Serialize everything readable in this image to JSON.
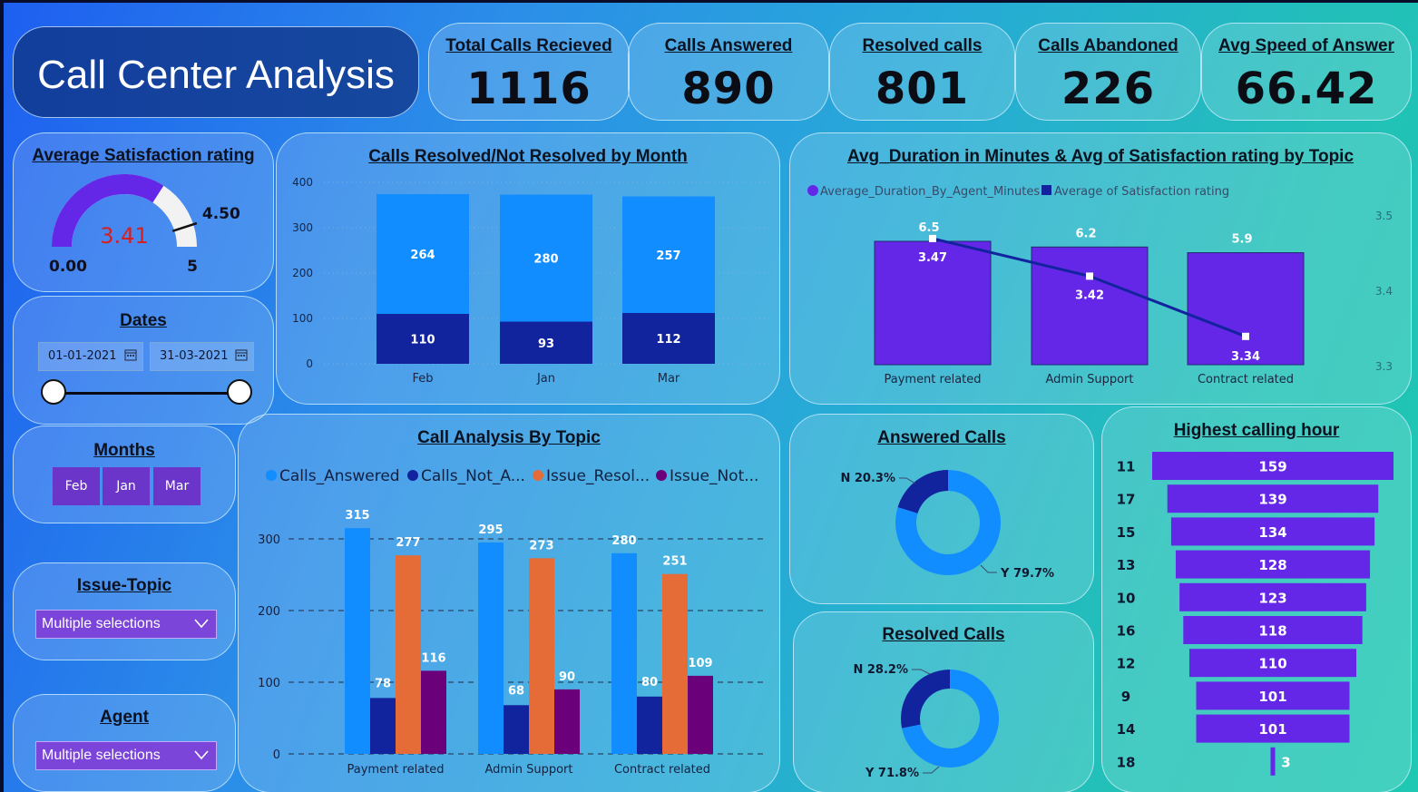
{
  "header": {
    "title": "Call Center Analysis"
  },
  "kpis": [
    {
      "label": "Total Calls Recieved",
      "value": "1116"
    },
    {
      "label": "Calls Answered",
      "value": "890"
    },
    {
      "label": "Resolved calls",
      "value": "801"
    },
    {
      "label": "Calls Abandoned",
      "value": "226"
    },
    {
      "label": "Avg Speed of Answer",
      "value": "66.42"
    }
  ],
  "filters": {
    "dates": {
      "title": "Dates",
      "start": "01-01-2021",
      "end": "31-03-2021"
    },
    "months": {
      "title": "Months",
      "items": [
        "Feb",
        "Jan",
        "Mar"
      ]
    },
    "issue_topic": {
      "title": "Issue-Topic",
      "value": "Multiple selections"
    },
    "agent": {
      "title": "Agent",
      "value": "Multiple selections"
    }
  },
  "colors": {
    "gauge_fill": "#6427e8",
    "gauge_track": "#f2f2f2",
    "resolved": "#118dff",
    "not_resolved": "#12239e",
    "answered": "#118dff",
    "not_answered": "#12239e",
    "issue_resolved": "#e66c37",
    "issue_not_resolved": "#6b007b",
    "purple_bar": "#6427e8",
    "line": "#12239e"
  },
  "chart_data": [
    {
      "type": "gauge",
      "title": "Average Satisfaction rating",
      "value": 3.41,
      "value_label": "3.41",
      "min": 0,
      "max": 5,
      "min_label": "0.00",
      "max_label": "5",
      "target": 4.5,
      "target_label": "4.50"
    },
    {
      "type": "bar",
      "stacked": true,
      "title": "Calls Resolved/Not Resolved by Month",
      "categories": [
        "Feb",
        "Jan",
        "Mar"
      ],
      "series": [
        {
          "values": [
            110,
            93,
            112
          ]
        },
        {
          "values": [
            264,
            280,
            257
          ]
        }
      ],
      "ylim": [
        0,
        400
      ],
      "yticks": [
        0,
        100,
        200,
        300,
        400
      ],
      "grid": true
    },
    {
      "type": "bar",
      "title": "Avg_Duration in Minutes & Avg of Satisfaction rating by Topic",
      "legend": [
        "Average_Duration_By_Agent_Minutes",
        "Average of Satisfaction rating"
      ],
      "legend_position": "top-left",
      "categories": [
        "Payment related",
        "Admin Support",
        "Contract related"
      ],
      "bar_series": {
        "name": "Average_Duration_By_Agent_Minutes",
        "values": [
          6.5,
          6.2,
          5.9
        ]
      },
      "line_series": {
        "name": "Average of Satisfaction rating",
        "values": [
          3.47,
          3.42,
          3.34
        ]
      },
      "y2_ticks": [
        "3.5",
        "3.4",
        "3.3"
      ],
      "y2lim": [
        3.3,
        3.5
      ]
    },
    {
      "type": "bar",
      "title": "Call Analysis By Topic",
      "legend": [
        "Calls_Answered",
        "Calls_Not_A...",
        "Issue_Resol...",
        "Issue_Not..."
      ],
      "legend_position": "top",
      "categories": [
        "Payment related",
        "Admin Support",
        "Contract related"
      ],
      "series": [
        {
          "values": [
            315,
            295,
            280
          ]
        },
        {
          "values": [
            78,
            68,
            80
          ]
        },
        {
          "values": [
            277,
            273,
            251
          ]
        },
        {
          "values": [
            116,
            90,
            109
          ]
        }
      ],
      "ylim": [
        0,
        320
      ],
      "yticks": [
        0,
        100,
        200,
        300
      ],
      "grid": true
    },
    {
      "type": "pie",
      "donut": true,
      "title": "Answered Calls",
      "slices": [
        {
          "label": "N",
          "value": 20.3,
          "display": "N 20.3%"
        },
        {
          "label": "Y",
          "value": 79.7,
          "display": "Y 79.7%"
        }
      ]
    },
    {
      "type": "pie",
      "donut": true,
      "title": "Resolved Calls",
      "slices": [
        {
          "label": "N",
          "value": 28.2,
          "display": "N 28.2%"
        },
        {
          "label": "Y",
          "value": 71.8,
          "display": "Y 71.8%"
        }
      ]
    },
    {
      "type": "funnel",
      "title": "Highest calling hour",
      "categories": [
        "11",
        "17",
        "15",
        "13",
        "10",
        "16",
        "12",
        "9",
        "14",
        "18"
      ],
      "values": [
        159,
        139,
        134,
        128,
        123,
        118,
        110,
        101,
        101,
        3
      ]
    }
  ]
}
